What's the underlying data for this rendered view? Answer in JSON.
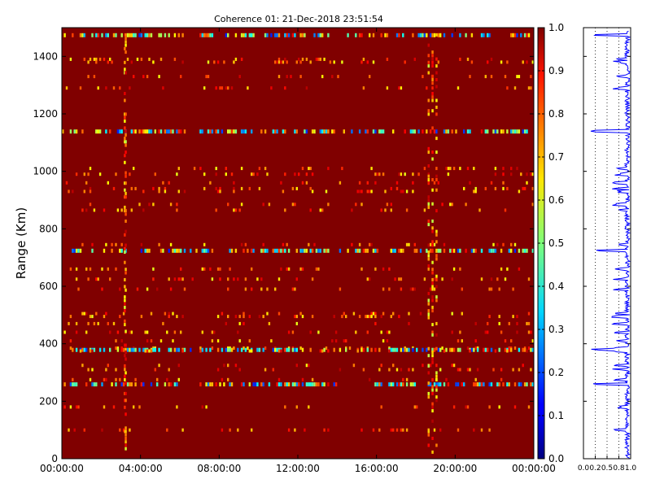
{
  "chart_data": [
    {
      "type": "heatmap",
      "title": "Coherence 01: 21-Dec-2018 23:51:54",
      "ylabel": "Range (Km)",
      "xlabel": "",
      "x_ticks": [
        "00:00:00",
        "04:00:00",
        "08:00:00",
        "12:00:00",
        "16:00:00",
        "20:00:00",
        "00:00:00"
      ],
      "x_tick_hours": [
        0,
        4,
        8,
        12,
        16,
        20,
        24
      ],
      "y_ticks": [
        0,
        200,
        400,
        600,
        800,
        1000,
        1200,
        1400
      ],
      "ylim": [
        0,
        1500
      ],
      "xlim_hours": [
        0,
        24
      ],
      "background_value": 1.0,
      "colormap": "jet",
      "low_coherence_ranges_km": [
        1475,
        1390,
        1380,
        1330,
        1290,
        1140,
        1010,
        990,
        960,
        940,
        930,
        885,
        865,
        745,
        725,
        660,
        625,
        590,
        505,
        495,
        470,
        440,
        410,
        385,
        380,
        375,
        325,
        310,
        275,
        260,
        180,
        100
      ],
      "strong_bands_km": [
        1475,
        1385,
        1140,
        725,
        380,
        260
      ],
      "low_coherence_hour_columns": [
        3.15,
        3.2,
        18.6,
        18.8,
        19.0
      ]
    },
    {
      "type": "colorbar",
      "ticks": [
        "0.0",
        "0.1",
        "0.2",
        "0.3",
        "0.4",
        "0.5",
        "0.6",
        "0.7",
        "0.8",
        "0.9",
        "1.0"
      ],
      "range": [
        0,
        1
      ]
    },
    {
      "type": "line",
      "description_axis": "horizontal profile of coherence vs range",
      "x_ticks": [
        "0.0",
        "0.2",
        "0.5",
        "0.8",
        "1.0"
      ],
      "x_tick_values": [
        0,
        0.25,
        0.5,
        0.75,
        1.0
      ],
      "xlim": [
        0,
        1
      ],
      "ylim": [
        0,
        1500
      ],
      "grid": "vertical dotted at 0.25, 0.5, 0.75",
      "color": "#0000ff"
    }
  ]
}
